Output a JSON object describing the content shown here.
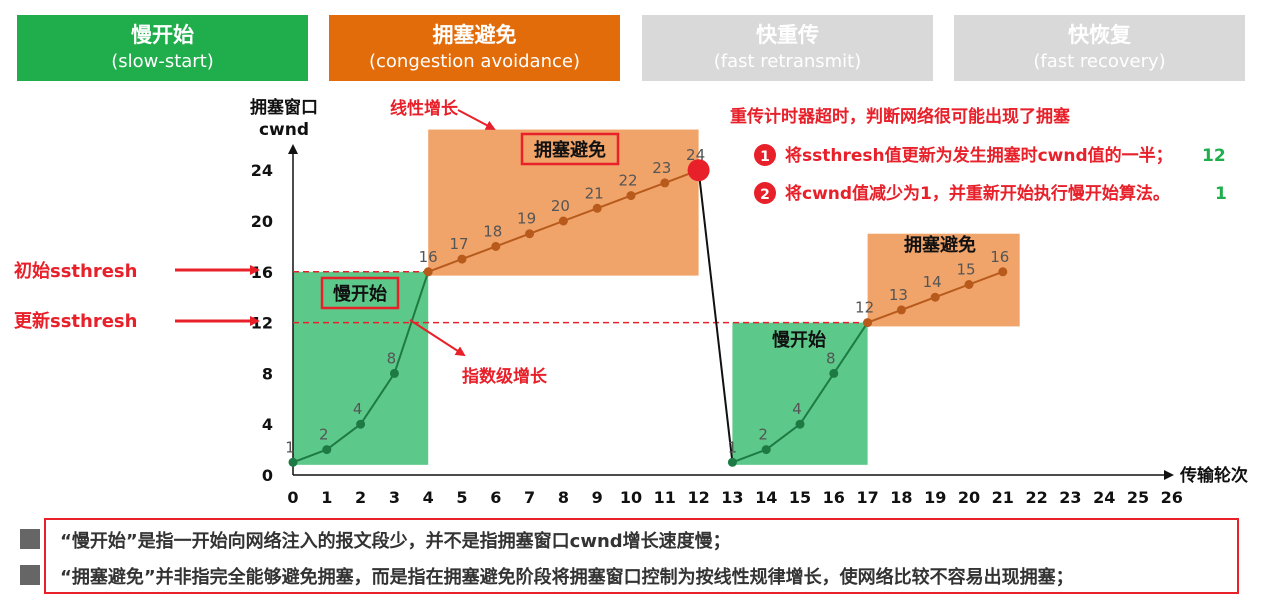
{
  "phases": [
    {
      "zh": "慢开始",
      "en": "(slow-start)",
      "color": "#1fae4b"
    },
    {
      "zh": "拥塞避免",
      "en": "(congestion avoidance)",
      "color": "#e36c0a"
    },
    {
      "zh": "快重传",
      "en": "(fast retransmit)",
      "color": "#d9d9d9"
    },
    {
      "zh": "快恢复",
      "en": "(fast recovery)",
      "color": "#d9d9d9"
    }
  ],
  "annotations": {
    "linear_growth": "线性增长",
    "exponential_growth": "指数级增长",
    "timeout": "重传计时器超时，判断网络很可能出现了拥塞",
    "step1_text": "将ssthresh值更新为发生拥塞时cwnd值的一半；",
    "step1_value": "12",
    "step1_num": "1",
    "step2_text": "将cwnd值减少为1，并重新开始执行慢开始算法。",
    "step2_value": "1",
    "step2_num": "2",
    "initial_ssthresh": "初始ssthresh",
    "updated_ssthresh": "更新ssthresh",
    "region_ca1": "拥塞避免",
    "region_ss1": "慢开始",
    "region_ss2": "慢开始",
    "region_ca2": "拥塞避免"
  },
  "notes": [
    "“慢开始”是指一开始向网络注入的报文段少，并不是指拥塞窗口cwnd增长速度慢；",
    "“拥塞避免”并非指完全能够避免拥塞，而是指在拥塞避免阶段将拥塞窗口控制为按线性规律增长，使网络比较不容易出现拥塞；"
  ],
  "chart_data": {
    "type": "line",
    "ylabel_line1": "拥塞窗口",
    "ylabel_line2": "cwnd",
    "xlabel": "传输轮次",
    "xlim": [
      0,
      26
    ],
    "ylim": [
      0,
      26
    ],
    "x_ticks": [
      0,
      1,
      2,
      3,
      4,
      5,
      6,
      7,
      8,
      9,
      10,
      11,
      12,
      13,
      14,
      15,
      16,
      17,
      18,
      19,
      20,
      21,
      22,
      23,
      24,
      25,
      26
    ],
    "y_ticks": [
      0,
      4,
      8,
      12,
      16,
      20,
      24
    ],
    "initial_ssthresh": 16,
    "updated_ssthresh": 12,
    "series": [
      {
        "points": [
          [
            0,
            1
          ],
          [
            1,
            2
          ],
          [
            2,
            4
          ],
          [
            3,
            8
          ],
          [
            4,
            16
          ],
          [
            5,
            17
          ],
          [
            6,
            18
          ],
          [
            7,
            19
          ],
          [
            8,
            20
          ],
          [
            9,
            21
          ],
          [
            10,
            22
          ],
          [
            11,
            23
          ],
          [
            12,
            24
          ],
          [
            13,
            1
          ],
          [
            14,
            2
          ],
          [
            15,
            4
          ],
          [
            16,
            8
          ],
          [
            17,
            12
          ],
          [
            18,
            13
          ],
          [
            19,
            14
          ],
          [
            20,
            15
          ],
          [
            21,
            16
          ]
        ],
        "labels": [
          "1",
          "2",
          "4",
          "8",
          "16",
          "17",
          "18",
          "19",
          "20",
          "21",
          "22",
          "23",
          "24",
          "1",
          "2",
          "4",
          "8",
          "12",
          "13",
          "14",
          "15",
          "16"
        ]
      }
    ],
    "regions": [
      {
        "x": [
          0,
          4
        ],
        "y": [
          0.8,
          16
        ],
        "color": "#5cc98a"
      },
      {
        "x": [
          4,
          12
        ],
        "y": [
          15.7,
          27.2
        ],
        "color": "#f0a46a"
      },
      {
        "x": [
          13,
          17
        ],
        "y": [
          0.8,
          12
        ],
        "color": "#5cc98a"
      },
      {
        "x": [
          17,
          21.5
        ],
        "y": [
          11.7,
          19
        ],
        "color": "#f0a46a"
      }
    ],
    "colors": {
      "curve": "#1e7a43",
      "ca_curve": "#b85a1c",
      "drop": "#111111",
      "dashed": "#e8202a",
      "red": "#e8202a",
      "green": "#1fae4b"
    }
  }
}
